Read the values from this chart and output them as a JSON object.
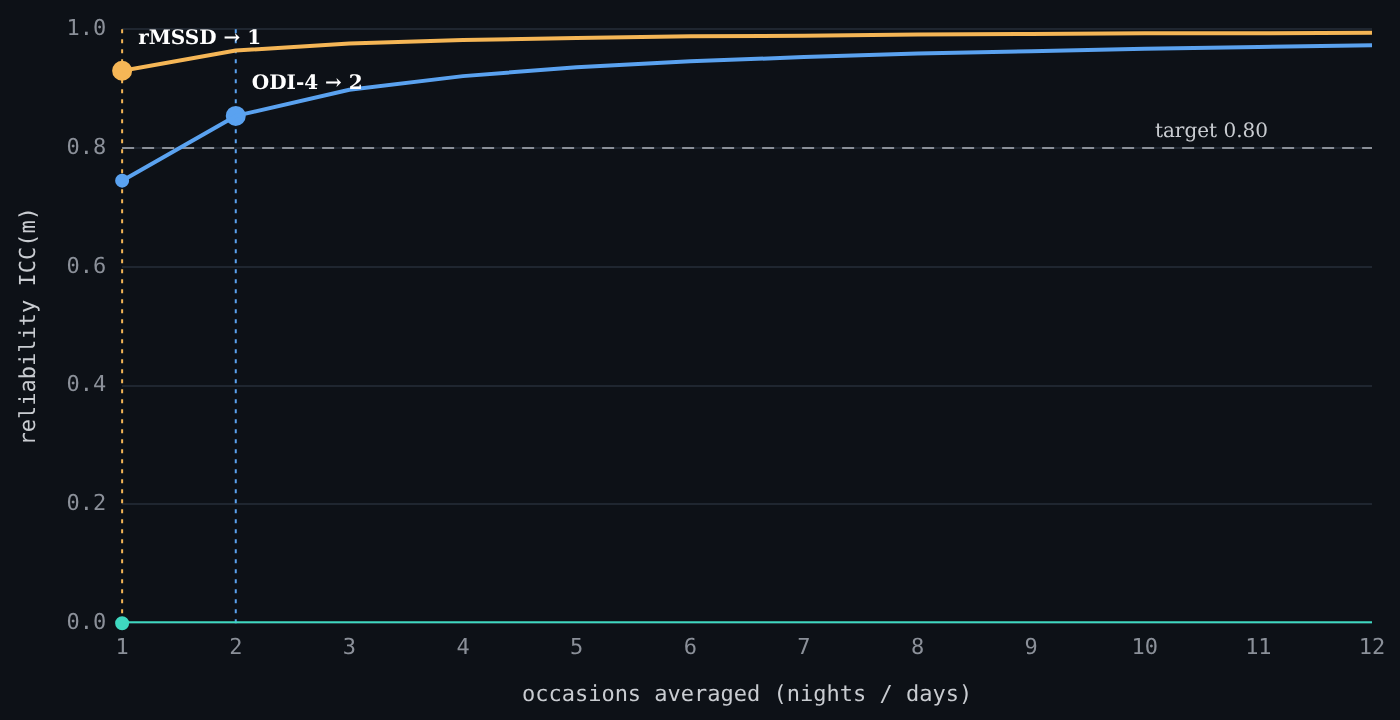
{
  "chart_data": {
    "type": "line",
    "xlabel": "occasions averaged (nights / days)",
    "ylabel": "reliability ICC(m)",
    "x": [
      1,
      2,
      3,
      4,
      5,
      6,
      7,
      8,
      9,
      10,
      11,
      12
    ],
    "series": [
      {
        "color": "#f5b656",
        "values": [
          0.93,
          0.964,
          0.976,
          0.982,
          0.985,
          0.988,
          0.989,
          0.991,
          0.992,
          0.993,
          0.993,
          0.994
        ]
      },
      {
        "color": "#5aa2f0",
        "values": [
          0.745,
          0.854,
          0.898,
          0.921,
          0.936,
          0.946,
          0.953,
          0.959,
          0.963,
          0.967,
          0.97,
          0.973
        ]
      },
      {
        "color": "#3fd8c0",
        "values": [
          0,
          0,
          0,
          0,
          0,
          0,
          0,
          0,
          0,
          0,
          0,
          0
        ]
      },
      {
        "type": "scatter",
        "values": [
          0.93,
          0.854,
          null,
          null,
          null,
          null,
          null,
          null,
          null,
          null,
          null,
          null
        ],
        "colors": [
          "#f5b656",
          "#5aa2f0",
          null,
          null,
          null,
          null,
          null,
          null,
          null,
          null,
          null,
          null
        ],
        "marker": "circle"
      },
      {
        "type": "scatter",
        "values": [
          0.745,
          null,
          null,
          null,
          null,
          null,
          null,
          null,
          null,
          null,
          null,
          null
        ],
        "color": "#5aa2f0",
        "marker": "circle"
      },
      {
        "type": "scatter",
        "values": [
          0,
          null,
          null,
          null,
          null,
          null,
          null,
          null,
          null,
          null,
          null,
          null
        ],
        "color": "#3fd8c0",
        "marker": "circle"
      }
    ],
    "ref_lines": [
      {
        "axis": "y",
        "value": 0.8,
        "label": "target 0.80",
        "color": "#8a8f98",
        "line_style": "dashed"
      },
      {
        "axis": "x",
        "value": 1,
        "color": "#f5b656",
        "line_style": "dotted"
      },
      {
        "axis": "x",
        "value": 2,
        "color": "#5aa2f0",
        "line_style": "dotted"
      }
    ],
    "annotations": [
      {
        "text": "rMSSD → 1",
        "x": 1,
        "y": 0.93
      },
      {
        "text": "ODI-4 → 2",
        "x": 2,
        "y": 0.854
      }
    ],
    "xlim": [
      1,
      12
    ],
    "xticks": [
      1,
      2,
      3,
      4,
      5,
      6,
      7,
      8,
      9,
      10,
      11,
      12
    ],
    "ylim": [
      0,
      1
    ],
    "yticks": [
      {
        "value": 0,
        "label": "0.0"
      },
      {
        "value": 0.2,
        "label": "0.2"
      },
      {
        "value": 0.4,
        "label": "0.4"
      },
      {
        "value": 0.6,
        "label": "0.6"
      },
      {
        "value": 0.8,
        "label": "0.8"
      },
      {
        "value": 1,
        "label": "1.0"
      }
    ],
    "grid": "y",
    "legend": false,
    "marker": "none",
    "line_style": "solid"
  }
}
